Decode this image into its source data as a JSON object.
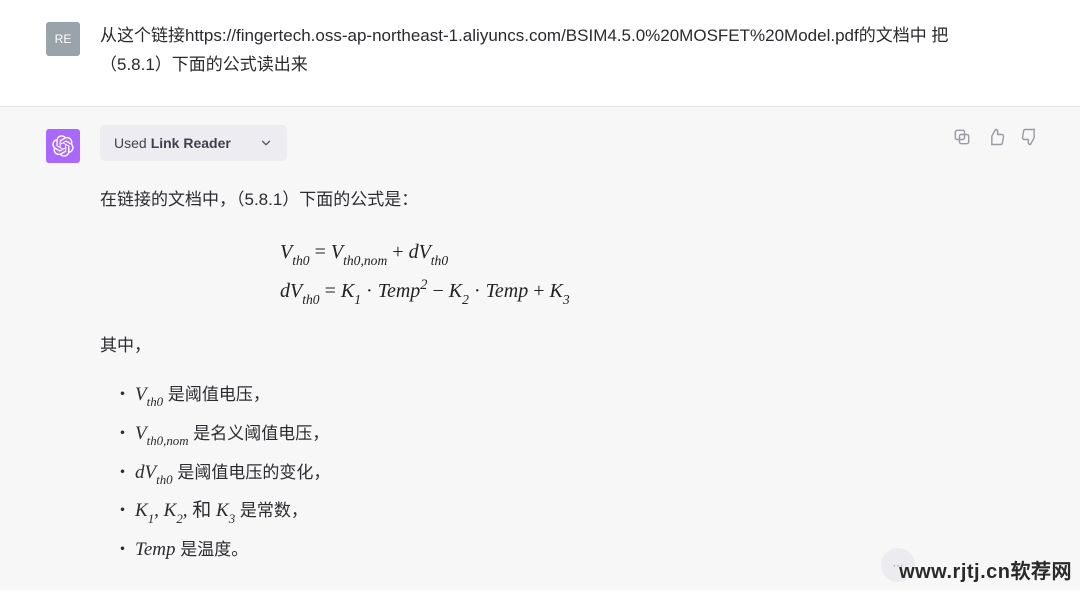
{
  "user": {
    "avatar_initials": "RE",
    "message": "从这个链接https://fingertech.oss-ap-northeast-1.aliyuncs.com/BSIM4.5.0%20MOSFET%20Model.pdf的文档中 把（5.8.1）下面的公式读出来"
  },
  "assistant": {
    "plugin_used_prefix": "Used",
    "plugin_name": "Link Reader",
    "intro_text": "在链接的文档中，（5.8.1）下面的公式是：",
    "formula_line1_html": "V<span class='sub'>th0</span> <span class='rm'>=</span> V<span class='sub'>th0,nom</span> <span class='rm'>+</span> dV<span class='sub'>th0</span>",
    "formula_line2_html": "dV<span class='sub'>th0</span> <span class='rm'>=</span> K<span class='sub'>1</span> <span class='rm'>·</span> Temp<span class='sup'>2</span> <span class='rm'>−</span> K<span class='sub'>2</span> <span class='rm'>·</span> Temp <span class='rm'>+</span> K<span class='sub'>3</span>",
    "where_label": "其中，",
    "bullets": [
      {
        "math_html": "V<span class='sub'>th0</span>",
        "desc": " 是阈值电压，"
      },
      {
        "math_html": "V<span class='sub'>th0,nom</span>",
        "desc": " 是名义阈值电压，"
      },
      {
        "math_html": "dV<span class='sub'>th0</span>",
        "desc": " 是阈值电压的变化，"
      },
      {
        "math_html": "K<span class='sub'>1</span>, K<span class='sub'>2</span>, <span class='rm' style='font-style:normal'>和</span> K<span class='sub'>3</span>",
        "desc": " 是常数，"
      },
      {
        "math_html": "Temp",
        "desc": " 是温度。"
      }
    ]
  },
  "actions": {
    "copy_label": "copy",
    "thumbs_up_label": "thumbs-up",
    "thumbs_down_label": "thumbs-down"
  },
  "watermark_text": "www.rjtj.cn软荐网",
  "colors": {
    "assistant_avatar_bg": "#ab68ff",
    "user_avatar_bg": "#9aa2aa",
    "assistant_bg": "#f7f7f8",
    "plugin_chip_bg": "#ececf1",
    "icon_stroke": "#9a9aa3",
    "text_primary": "#2c2c30"
  }
}
